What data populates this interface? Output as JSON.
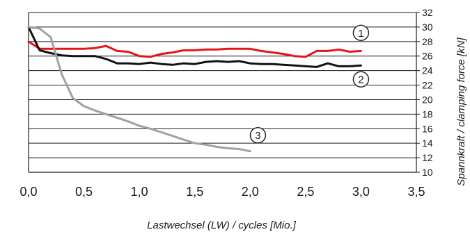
{
  "chart_data": {
    "type": "line",
    "xlabel": "Lastwechsel (LW) / cycles [Mio.]",
    "ylabel": "Spannkraft / clamping force [kN]",
    "xlim": [
      0,
      3.5
    ],
    "ylim": [
      10,
      32
    ],
    "x_ticks": [
      "0,0",
      "0,5",
      "1,0",
      "1,5",
      "2,0",
      "2,5",
      "3,0",
      "3,5"
    ],
    "y_ticks": [
      "10",
      "12",
      "14",
      "16",
      "18",
      "20",
      "22",
      "24",
      "26",
      "28",
      "30",
      "32"
    ],
    "grid": "horizontal",
    "colors": {
      "series1": "#e8141a",
      "series2": "#111111",
      "series3": "#a0a0a0"
    },
    "series": [
      {
        "marker": "1",
        "x": [
          0,
          0.1,
          0.2,
          0.3,
          0.4,
          0.5,
          0.6,
          0.7,
          0.8,
          0.9,
          1.0,
          1.1,
          1.2,
          1.3,
          1.4,
          1.5,
          1.6,
          1.7,
          1.8,
          1.9,
          2.0,
          2.1,
          2.2,
          2.3,
          2.4,
          2.5,
          2.6,
          2.7,
          2.8,
          2.9,
          3.0
        ],
        "values": [
          28,
          27,
          27,
          27,
          27,
          27,
          27.1,
          27.4,
          26.7,
          26.6,
          26.0,
          25.9,
          26.3,
          26.5,
          26.8,
          26.8,
          26.9,
          26.9,
          27.0,
          27.0,
          27.0,
          26.7,
          26.5,
          26.3,
          26.0,
          25.9,
          26.7,
          26.7,
          26.9,
          26.6,
          26.7
        ]
      },
      {
        "marker": "2",
        "x": [
          0,
          0.1,
          0.2,
          0.3,
          0.4,
          0.5,
          0.6,
          0.7,
          0.8,
          0.9,
          1.0,
          1.1,
          1.2,
          1.3,
          1.4,
          1.5,
          1.6,
          1.7,
          1.8,
          1.9,
          2.0,
          2.1,
          2.2,
          2.3,
          2.4,
          2.5,
          2.6,
          2.7,
          2.8,
          2.9,
          3.0
        ],
        "values": [
          30,
          26.8,
          26.4,
          26.1,
          26.0,
          26.0,
          26.0,
          25.6,
          25.0,
          25.0,
          24.9,
          25.1,
          24.9,
          24.8,
          25.0,
          24.9,
          25.2,
          25.3,
          25.2,
          25.3,
          25.0,
          24.9,
          24.9,
          24.8,
          24.7,
          24.6,
          24.5,
          25.0,
          24.6,
          24.6,
          24.7
        ]
      },
      {
        "marker": "3",
        "x": [
          0,
          0.1,
          0.2,
          0.25,
          0.3,
          0.4,
          0.5,
          0.6,
          0.7,
          0.8,
          0.9,
          1.0,
          1.1,
          1.2,
          1.3,
          1.4,
          1.5,
          1.6,
          1.7,
          1.8,
          1.9,
          2.0
        ],
        "values": [
          30,
          29.8,
          28.6,
          26.0,
          23.5,
          20.2,
          19.1,
          18.5,
          18.0,
          17.5,
          17.0,
          16.4,
          16.0,
          15.5,
          15.0,
          14.5,
          14.0,
          13.8,
          13.5,
          13.3,
          13.2,
          12.9
        ]
      }
    ],
    "annotations": [
      {
        "text": "1",
        "series": "1",
        "at_x": 3.0,
        "at_y": 29.2
      },
      {
        "text": "2",
        "series": "2",
        "at_x": 3.0,
        "at_y": 22.8
      },
      {
        "text": "3",
        "series": "3",
        "at_x": 2.07,
        "at_y": 15.1
      }
    ]
  }
}
